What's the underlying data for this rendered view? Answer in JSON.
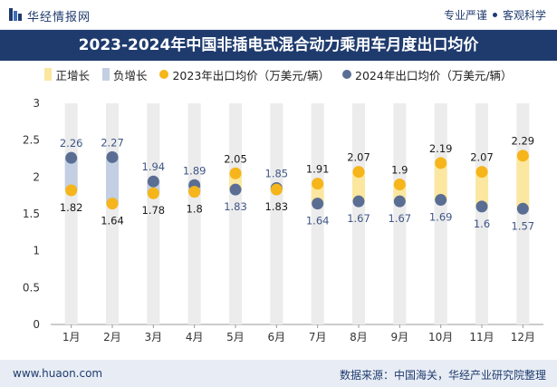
{
  "header": {
    "brand": "华经情报网",
    "tagline_left": "专业严谨",
    "tagline_right": "客观科学"
  },
  "title": "2023-2024年中国非插电式混合动力乘用车月度出口均价",
  "legend": {
    "pos": "正增长",
    "neg": "负增长",
    "s2023": "2023年出口均价（万美元/辆）",
    "s2024": "2024年出口均价（万美元/辆）"
  },
  "colors": {
    "header_bg": "#1f3b6e",
    "pos_bar": "#fbe7a0",
    "neg_bar": "#c3cfe2",
    "dot_2023": "#f5b51b",
    "dot_2024": "#5a6e94",
    "track": "#ececec"
  },
  "chart_data": {
    "type": "dot-range",
    "categories": [
      "1月",
      "2月",
      "3月",
      "4月",
      "5月",
      "6月",
      "7月",
      "8月",
      "9月",
      "10月",
      "11月",
      "12月"
    ],
    "series": [
      {
        "name": "2023年出口均价（万美元/辆）",
        "values": [
          1.82,
          1.64,
          1.78,
          1.8,
          2.05,
          1.83,
          1.91,
          2.07,
          1.9,
          2.19,
          2.07,
          2.29
        ]
      },
      {
        "name": "2024年出口均价（万美元/辆）",
        "values": [
          2.26,
          2.27,
          1.94,
          1.89,
          1.83,
          1.85,
          1.64,
          1.67,
          1.67,
          1.69,
          1.6,
          1.57
        ]
      }
    ],
    "ylim": [
      0,
      3
    ],
    "yticks": [
      "0",
      "0.5",
      "1",
      "1.5",
      "2",
      "2.5",
      "3"
    ],
    "ytick_values": [
      0,
      0.5,
      1,
      1.5,
      2,
      2.5,
      3
    ]
  },
  "footer": {
    "site": "www.huaon.com",
    "source": "数据来源：中国海关，华经产业研究院整理"
  }
}
